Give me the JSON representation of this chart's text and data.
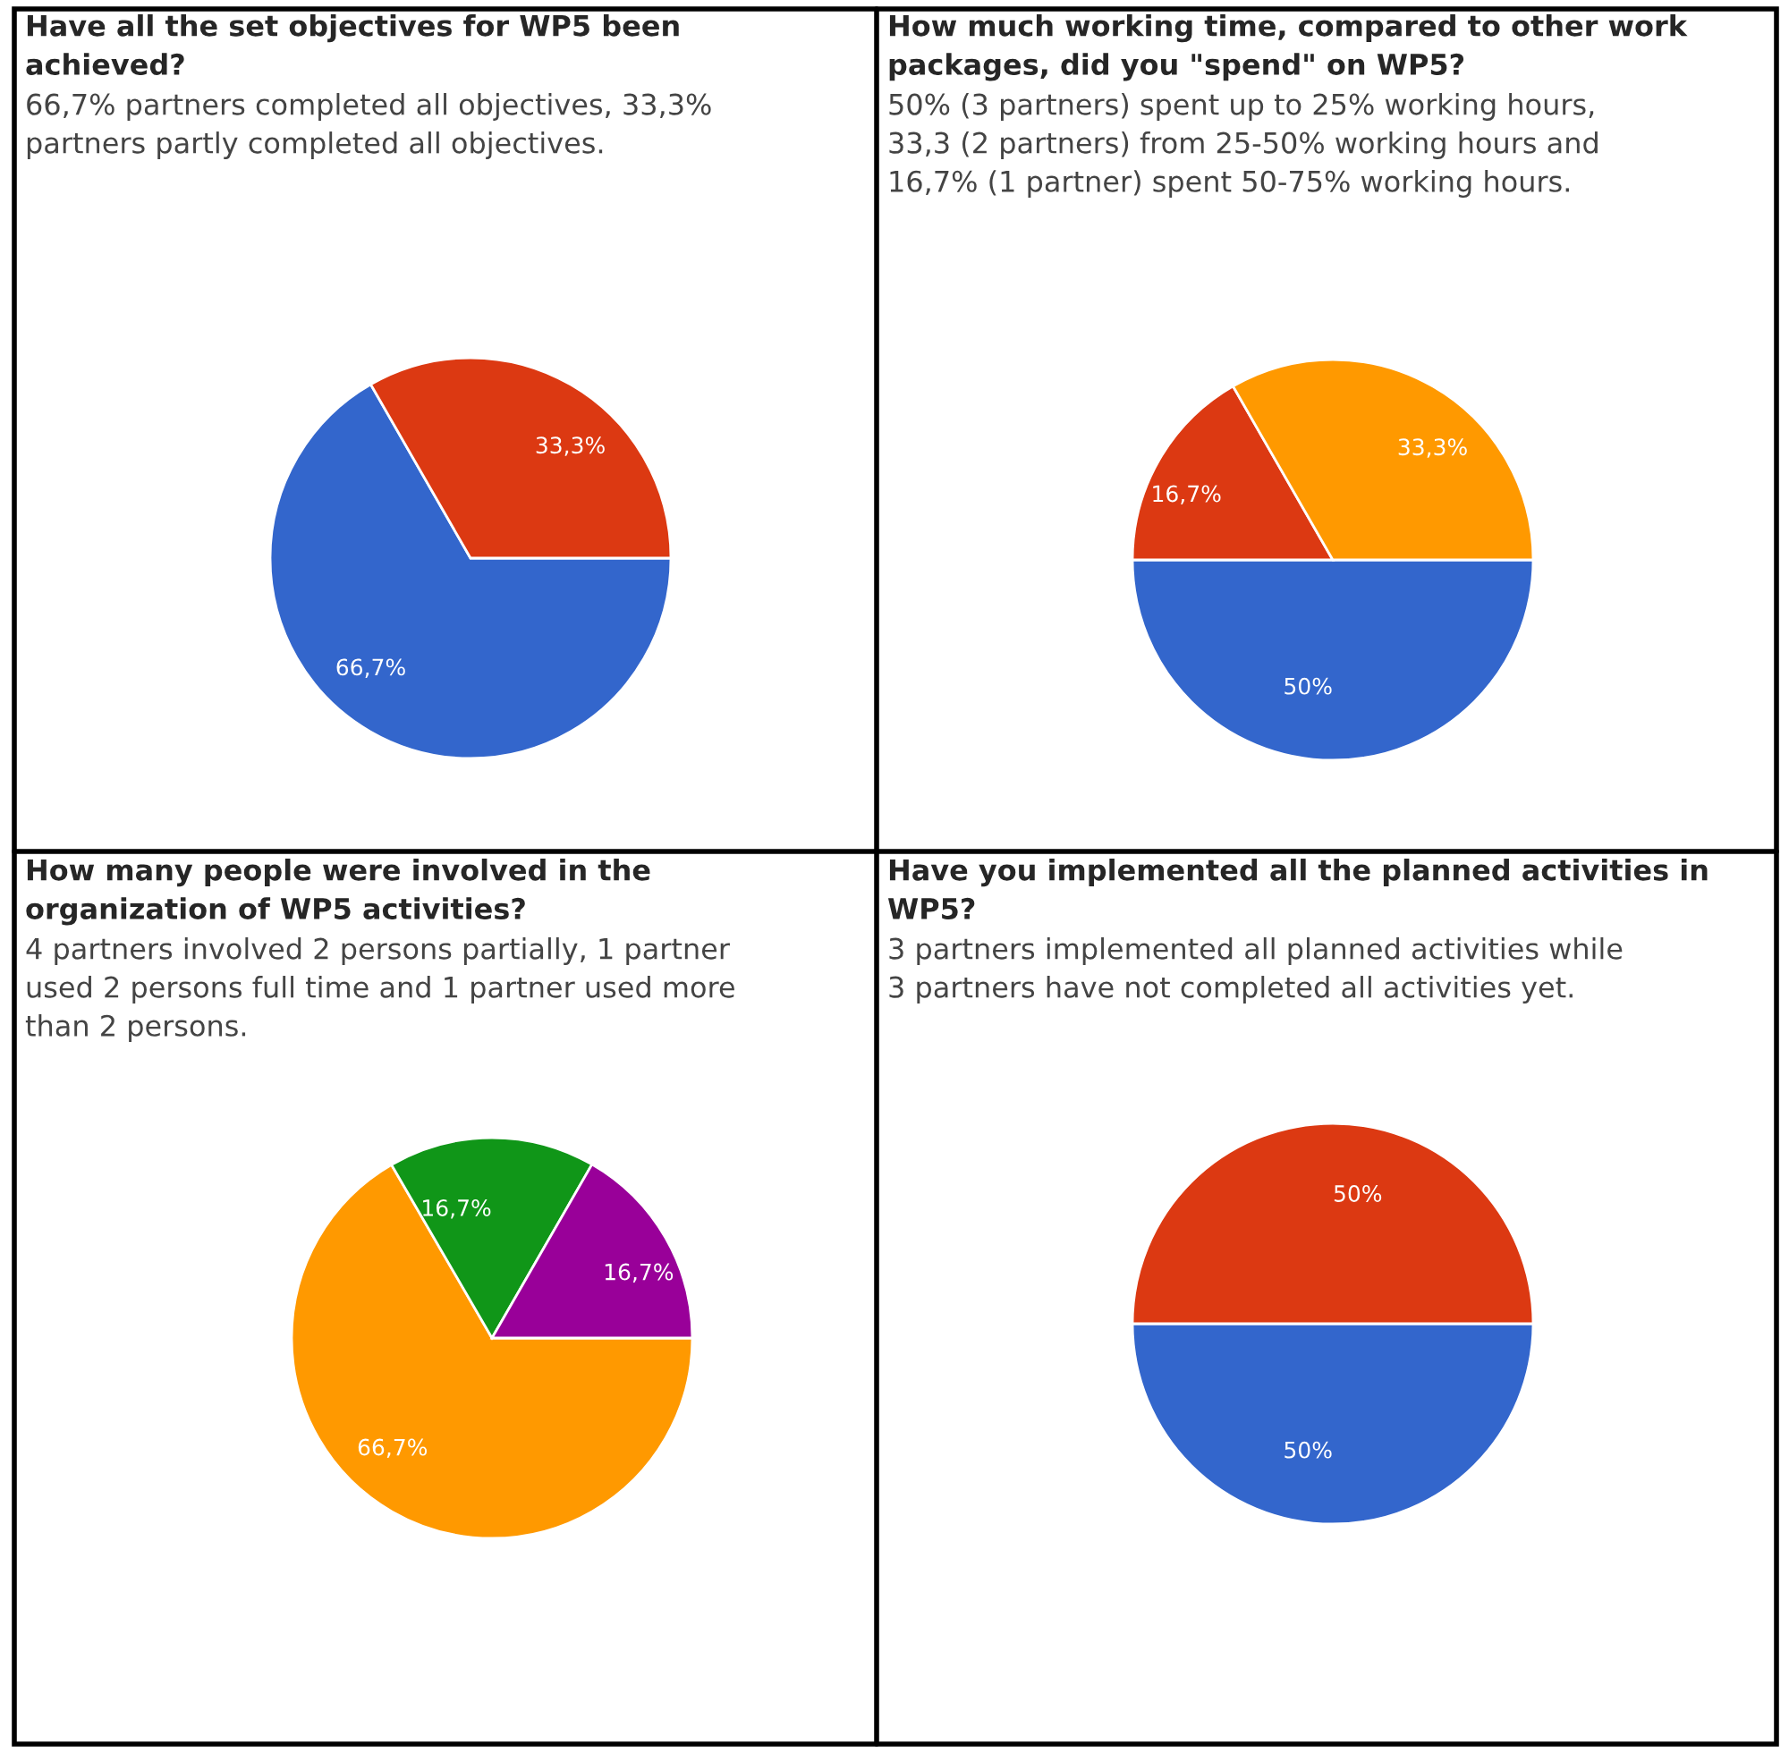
{
  "chart_data": [
    {
      "type": "pie",
      "title": "Have all the set objectives for WP5 been\nachieved?",
      "subtitle": "66,7% partners completed all objectives, 33,3%\npartners partly completed all objectives.",
      "categories": [
        null,
        null
      ],
      "values": [
        66.7,
        33.3
      ],
      "value_labels": [
        "66,7%",
        "33,3%"
      ],
      "colors": [
        "#3366cc",
        "#dc3912"
      ]
    },
    {
      "type": "pie",
      "title": "How much working time, compared to other work\npackages, did you \"spend\" on WP5?",
      "subtitle": "50% (3 partners) spent up to 25% working hours,\n33,3 (2 partners) from 25-50% working hours and\n16,7% (1 partner) spent 50-75% working hours.",
      "categories": [
        null,
        null,
        null
      ],
      "values": [
        50,
        16.7,
        33.3
      ],
      "value_labels": [
        "50%",
        "16,7%",
        "33,3%"
      ],
      "colors": [
        "#3366cc",
        "#dc3912",
        "#ff9900"
      ]
    },
    {
      "type": "pie",
      "title": "How many people were involved in the\norganization of WP5 activities?",
      "subtitle": "4 partners involved 2 persons partially, 1 partner\nused 2 persons full time and 1 partner used more\nthan 2 persons.",
      "categories": [
        null,
        null,
        null
      ],
      "values": [
        66.7,
        16.7,
        16.7
      ],
      "value_labels": [
        "66,7%",
        "16,7%",
        "16,7%"
      ],
      "colors": [
        "#ff9900",
        "#109618",
        "#990099"
      ]
    },
    {
      "type": "pie",
      "title": "Have you implemented all the planned activities in\nWP5?",
      "subtitle": "3 partners implemented all planned activities while\n3 partners have not completed all activities yet.",
      "categories": [
        null,
        null
      ],
      "values": [
        50,
        50
      ],
      "value_labels": [
        "50%",
        "50%"
      ],
      "colors": [
        "#3366cc",
        "#dc3912"
      ]
    }
  ]
}
